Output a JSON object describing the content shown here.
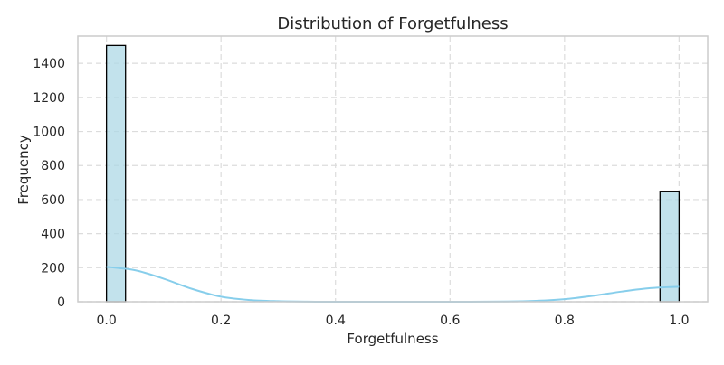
{
  "chart_data": {
    "type": "bar",
    "title": "Distribution of Forgetfulness",
    "xlabel": "Forgetfulness",
    "ylabel": "Frequency",
    "xlim": [
      -0.05,
      1.05
    ],
    "ylim": [
      0,
      1560
    ],
    "x_ticks": [
      "0.0",
      "0.2",
      "0.4",
      "0.6",
      "0.8",
      "1.0"
    ],
    "y_ticks": [
      "0",
      "200",
      "400",
      "600",
      "800",
      "1000",
      "1200",
      "1400"
    ],
    "grid": true,
    "legend": "none",
    "bins": [
      {
        "x0": 0.0,
        "x1": 0.0333,
        "count": 1505
      },
      {
        "x0": 0.9667,
        "x1": 1.0,
        "count": 649
      }
    ],
    "kde": {
      "x": [
        0.0,
        0.05,
        0.1,
        0.15,
        0.2,
        0.25,
        0.3,
        0.35,
        0.4,
        0.5,
        0.6,
        0.7,
        0.75,
        0.8,
        0.85,
        0.9,
        0.95,
        1.0
      ],
      "y": [
        205,
        185,
        135,
        75,
        30,
        10,
        3,
        0.5,
        0,
        0,
        0,
        1,
        5,
        15,
        35,
        60,
        80,
        88
      ]
    },
    "colors": {
      "bar_fill": "#add8e6",
      "bar_edge": "#000000",
      "kde_line": "#87ceeb",
      "grid": "#dcdcdc",
      "frame": "#cccccc"
    }
  }
}
